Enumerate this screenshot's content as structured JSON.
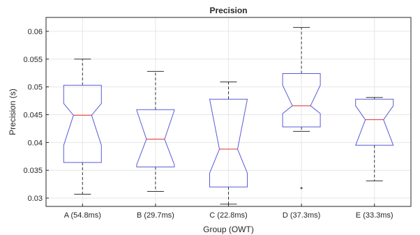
{
  "chart_data": {
    "type": "boxplot",
    "notched": true,
    "title": "Precision",
    "xlabel": "Group (OWT)",
    "ylabel": "Precision (s)",
    "ylim": [
      0.0285,
      0.0625
    ],
    "yticks": [
      0.03,
      0.035,
      0.04,
      0.045,
      0.05,
      0.055,
      0.06
    ],
    "ytick_labels": [
      "0.03",
      "0.035",
      "0.04",
      "0.045",
      "0.05",
      "0.055",
      "0.06"
    ],
    "grid": true,
    "categories": [
      "A (54.8ms)",
      "B (29.7ms)",
      "C (22.8ms)",
      "D (37.3ms)",
      "E (33.3ms)"
    ],
    "boxes": [
      {
        "label": "A (54.8ms)",
        "whisker_low": 0.0307,
        "q1": 0.0364,
        "notch_low": 0.0395,
        "median": 0.0449,
        "notch_high": 0.047,
        "q3": 0.0503,
        "whisker_high": 0.055,
        "outliers": []
      },
      {
        "label": "B (29.7ms)",
        "whisker_low": 0.0312,
        "q1": 0.0356,
        "notch_low": 0.036,
        "median": 0.0406,
        "notch_high": 0.0458,
        "q3": 0.0459,
        "whisker_high": 0.0528,
        "outliers": []
      },
      {
        "label": "C (22.8ms)",
        "whisker_low": 0.0289,
        "q1": 0.032,
        "notch_low": 0.0345,
        "median": 0.0388,
        "notch_high": 0.0478,
        "q3": 0.0478,
        "whisker_high": 0.0509,
        "outliers": []
      },
      {
        "label": "D (37.3ms)",
        "whisker_low": 0.042,
        "q1": 0.0428,
        "notch_low": 0.0452,
        "median": 0.0466,
        "notch_high": 0.0503,
        "q3": 0.0524,
        "whisker_high": 0.0607,
        "outliers": [
          0.0318
        ]
      },
      {
        "label": "E (33.3ms)",
        "whisker_low": 0.0331,
        "q1": 0.0395,
        "notch_low": 0.0395,
        "median": 0.0441,
        "notch_high": 0.0466,
        "q3": 0.0478,
        "whisker_high": 0.0481,
        "outliers": []
      }
    ],
    "colors": {
      "box": "#5a5ad8",
      "median": "#e0322b",
      "whisker": "#333333",
      "outlier": "#555555",
      "grid": "#e6e6e6",
      "axis": "#262626"
    }
  }
}
